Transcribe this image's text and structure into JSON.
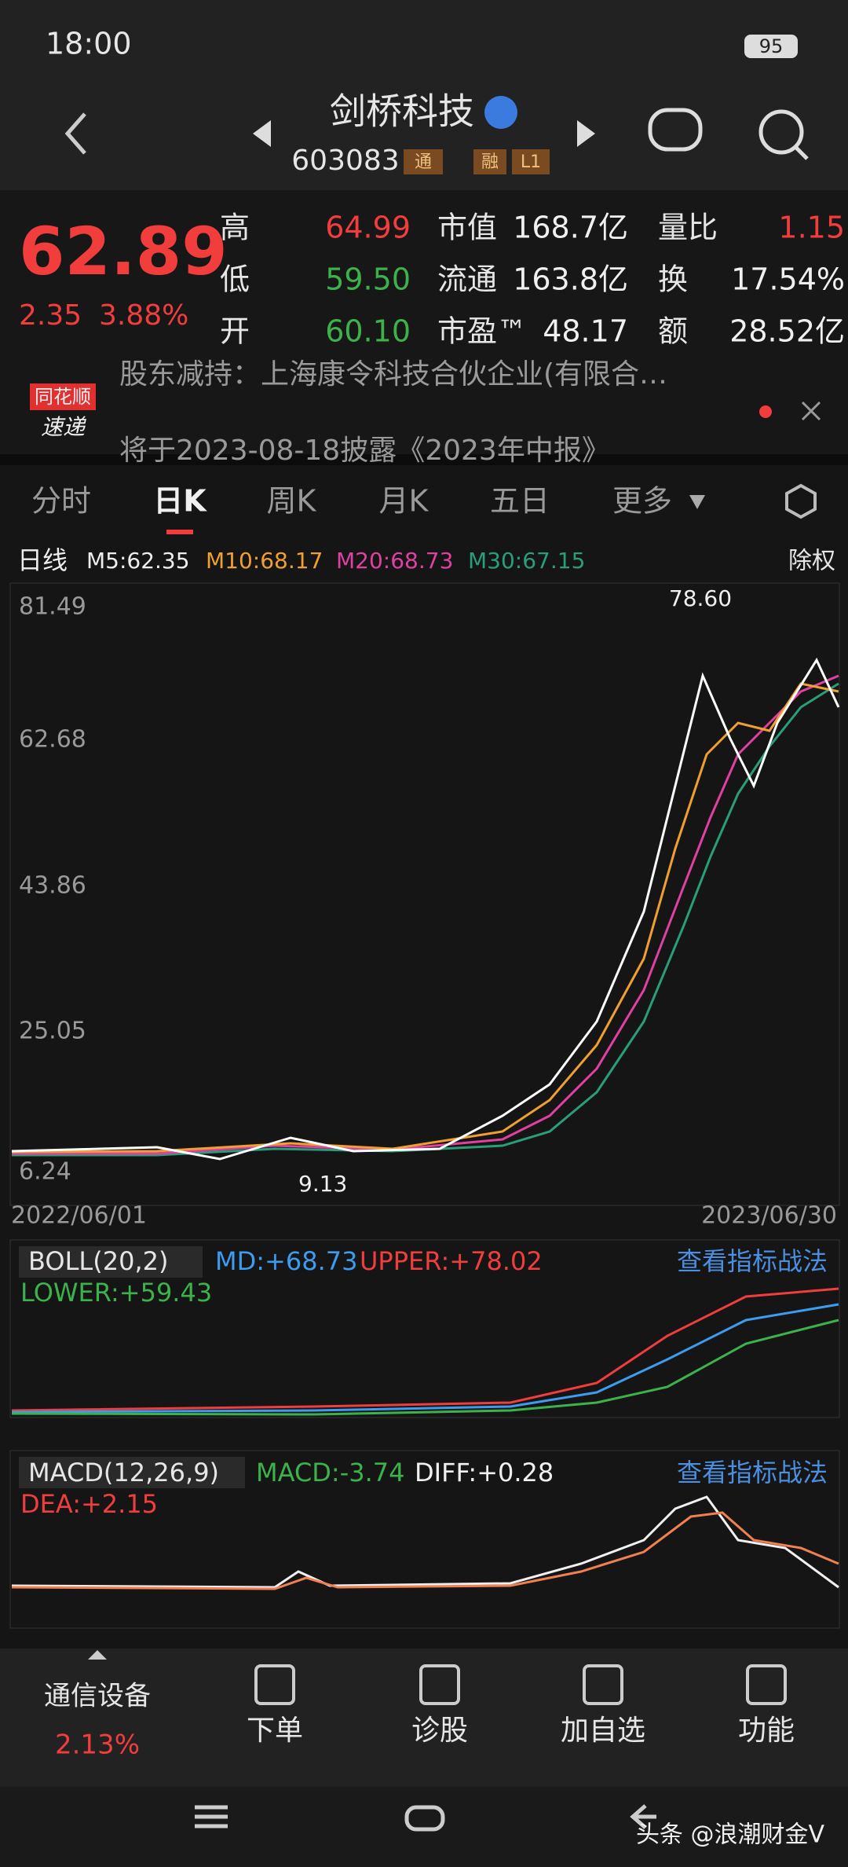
{
  "status_bar": {
    "time": "18:00",
    "battery": "95"
  },
  "header": {
    "title": "剑桥科技",
    "code": "603083",
    "tags": [
      "通",
      "融",
      "L1"
    ]
  },
  "quote": {
    "price": "62.89",
    "change": "2.35",
    "change_pct": "3.88%",
    "fields": [
      {
        "label": "高",
        "value": "64.99"
      },
      {
        "label": "低",
        "value": "59.50"
      },
      {
        "label": "开",
        "value": "60.10"
      },
      {
        "label": "市值",
        "value": "168.7亿"
      },
      {
        "label": "流通",
        "value": "163.8亿"
      },
      {
        "label": "市盈™",
        "value": "48.17"
      },
      {
        "label": "量比",
        "value": "1.15"
      },
      {
        "label": "换",
        "value": "17.54%"
      },
      {
        "label": "额",
        "value": "28.52亿"
      }
    ]
  },
  "news": {
    "brand": [
      "同花顺",
      "速递"
    ],
    "lines": [
      "股东减持：上海康令科技合伙企业(有限合…",
      "将于2023-08-18披露《2023年中报》"
    ]
  },
  "tabs": [
    "分时",
    "日K",
    "周K",
    "月K",
    "五日",
    "更多"
  ],
  "kline": {
    "legend": [
      "日线",
      "M5:62.35",
      "M10:68.17",
      "M20:68.73",
      "M30:67.15"
    ],
    "adjust": "除权",
    "price_labels": [
      "81.49",
      "62.68",
      "43.86",
      "25.05",
      "6.24"
    ],
    "high_note": "78.60",
    "low_note": "9.13",
    "start_date": "2022/06/01",
    "end_date": "2023/06/30"
  },
  "boll": {
    "name": "BOLL(20,2)",
    "md": "MD:+68.73",
    "upper": "UPPER:+78.02",
    "lower": "LOWER:+59.43",
    "link": "查看指标战法"
  },
  "macd": {
    "name": "MACD(12,26,9)",
    "macd": "MACD:-3.74",
    "diff": "DIFF:+0.28",
    "dea": "DEA:+2.15",
    "link": "查看指标战法"
  },
  "bottom_nav": {
    "sector": "通信设备",
    "sector_pct": "2.13%",
    "items": [
      "下单",
      "诊股",
      "加自选",
      "功能"
    ]
  },
  "watermark": "头条 @浪潮财金V"
}
